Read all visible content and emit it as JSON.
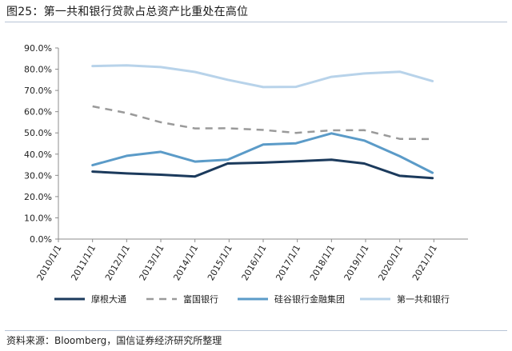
{
  "header": {
    "title": "图25：第一共和银行贷款占总资产比重处在高位"
  },
  "footer": {
    "source": "资料来源：Bloomberg，国信证券经济研究所整理"
  },
  "colors": {
    "background": "#ffffff",
    "axis": "#8c8c8c",
    "rule": "#b8c4d6"
  },
  "chart_data": {
    "type": "line",
    "title": "",
    "xlabel": "",
    "ylabel": "",
    "x": [
      "2010/1/1",
      "2011/1/1",
      "2012/1/1",
      "2013/1/1",
      "2014/1/1",
      "2015/1/1",
      "2016/1/1",
      "2017/1/1",
      "2018/1/1",
      "2019/1/1",
      "2020/1/1",
      "2021/1/1"
    ],
    "ylim": [
      0,
      90
    ],
    "yticks": [
      "0.0%",
      "10.0%",
      "20.0%",
      "30.0%",
      "40.0%",
      "50.0%",
      "60.0%",
      "70.0%",
      "80.0%",
      "90.0%"
    ],
    "grid": false,
    "legend_position": "bottom",
    "series": [
      {
        "name": "摩根大通",
        "color": "#1b3a5c",
        "dash": "solid",
        "values": [
          [
            2011.0,
            31.8
          ],
          [
            2012.0,
            30.9
          ],
          [
            2013.0,
            30.3
          ],
          [
            2014.0,
            29.5
          ],
          [
            2014.96,
            35.6
          ],
          [
            2016.0,
            36.0
          ],
          [
            2016.96,
            36.6
          ],
          [
            2018.0,
            37.4
          ],
          [
            2018.96,
            35.6
          ],
          [
            2020.0,
            29.8
          ],
          [
            2020.96,
            28.7
          ]
        ]
      },
      {
        "name": "富国银行",
        "color": "#9a9a9a",
        "dash": "dashed",
        "values": [
          [
            2011.0,
            62.5
          ],
          [
            2012.0,
            59.4
          ],
          [
            2013.0,
            55.0
          ],
          [
            2014.0,
            52.1
          ],
          [
            2014.96,
            52.2
          ],
          [
            2016.0,
            51.4
          ],
          [
            2016.96,
            50.0
          ],
          [
            2018.0,
            51.2
          ],
          [
            2018.96,
            51.3
          ],
          [
            2020.0,
            47.2
          ],
          [
            2020.96,
            47.1
          ]
        ]
      },
      {
        "name": "硅谷银行金融集团",
        "color": "#5b9bc8",
        "dash": "solid",
        "values": [
          [
            2011.0,
            34.8
          ],
          [
            2012.0,
            39.2
          ],
          [
            2013.0,
            41.1
          ],
          [
            2014.0,
            36.5
          ],
          [
            2014.96,
            37.4
          ],
          [
            2016.0,
            44.5
          ],
          [
            2016.96,
            45.1
          ],
          [
            2018.0,
            49.8
          ],
          [
            2018.96,
            46.4
          ],
          [
            2020.0,
            39.0
          ],
          [
            2020.96,
            31.2
          ]
        ]
      },
      {
        "name": "第一共和银行",
        "color": "#b8d3ea",
        "dash": "solid",
        "values": [
          [
            2011.0,
            81.5
          ],
          [
            2012.0,
            81.8
          ],
          [
            2013.0,
            81.0
          ],
          [
            2014.0,
            78.7
          ],
          [
            2014.96,
            75.0
          ],
          [
            2016.0,
            71.6
          ],
          [
            2016.96,
            71.7
          ],
          [
            2018.0,
            76.4
          ],
          [
            2018.96,
            78.0
          ],
          [
            2020.0,
            78.8
          ],
          [
            2020.96,
            74.4
          ]
        ]
      }
    ]
  }
}
